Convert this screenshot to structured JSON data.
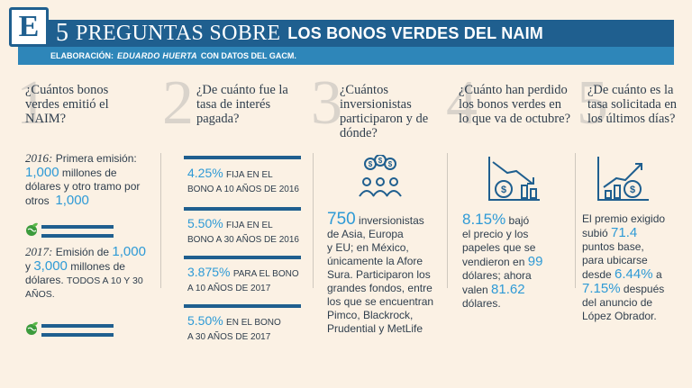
{
  "header": {
    "logo_letter": "E",
    "title_number": "5",
    "title_light": "PREGUNTAS SOBRE",
    "title_bold": "LOS BONOS VERDES DEL NAIM",
    "credit_prefix": "ELABORACIÓN:",
    "credit_name": "EDUARDO HUERTA",
    "credit_suffix": "CON DATOS DEL GACM."
  },
  "questions": [
    {
      "number": "1",
      "text": "¿Cuántos bonos verdes emitió el NAIM?"
    },
    {
      "number": "2",
      "text": "¿De cuánto fue la tasa de interés pagada?"
    },
    {
      "number": "3",
      "text": "¿Cuántos inversionistas participaron y de dónde?"
    },
    {
      "number": "4",
      "text": "¿Cuánto han perdido los bonos verdes en lo que va de octubre?"
    },
    {
      "number": "5",
      "text": "¿De cuánto es la tasa solicitada en los últimos días?"
    }
  ],
  "q1": {
    "year1": "2016:",
    "line1a": "Primera emisión:",
    "val1": "1,000",
    "line1b": "millones de",
    "line1c": "dólares y otro tramo por",
    "line1d": "otros",
    "val2": "1,000",
    "year2": "2017:",
    "line2a": "Emisión de",
    "val3": "1,000",
    "line2b": "y",
    "val4": "3,000",
    "line2c": "millones de",
    "line2d": "dólares.",
    "line2e": "TODOS A 10 Y 30",
    "line2f": "AÑOS."
  },
  "q2": {
    "rates": [
      {
        "rate": "4.25%",
        "desc1": "FIJA EN EL",
        "desc2": "BONO A 10 AÑOS DE 2016"
      },
      {
        "rate": "5.50%",
        "desc1": "FIJA EN EL",
        "desc2": "BONO A 30 AÑOS DE 2016"
      },
      {
        "rate": "3.875%",
        "desc1": "PARA EL BONO",
        "desc2": "A 10 AÑOS DE 2017"
      },
      {
        "rate": "5.50%",
        "desc1": "EN EL BONO",
        "desc2": "A 30 AÑOS DE 2017"
      }
    ]
  },
  "q3": {
    "value": "750",
    "l1": "inversionistas",
    "l2": "de Asia, Europa",
    "l3": "y EU; en México,",
    "l4": "únicamente la Afore",
    "l5": "Sura. Participaron los",
    "l6": "grandes fondos, entre",
    "l7": "los que se encuentran",
    "l8": "Pimco, Blackrock,",
    "l9": "Prudential y MetLife"
  },
  "q4": {
    "value": "8.15%",
    "l1a": "bajó",
    "l2": "el precio y los",
    "l3": "papeles que se",
    "l4a": "vendieron en",
    "val2": "99",
    "l5": "dólares; ahora",
    "l6a": "valen",
    "val3": "81.62",
    "l7": "dólares."
  },
  "q5": {
    "l1": "El premio exigido",
    "l2a": "subió",
    "val1": "71.4",
    "l3": "puntos base,",
    "l4": "para ubicarse",
    "l5a": "desde",
    "val2": "6.44%",
    "l5b": "a",
    "val3": "7.15%",
    "l6b": "después",
    "l7": "del anuncio de",
    "l8": "López Obrador."
  },
  "colors": {
    "dark_blue": "#1f5f8f",
    "mid_blue": "#2e86b9",
    "accent": "#2e9ad6",
    "background": "#fbf1e4"
  }
}
